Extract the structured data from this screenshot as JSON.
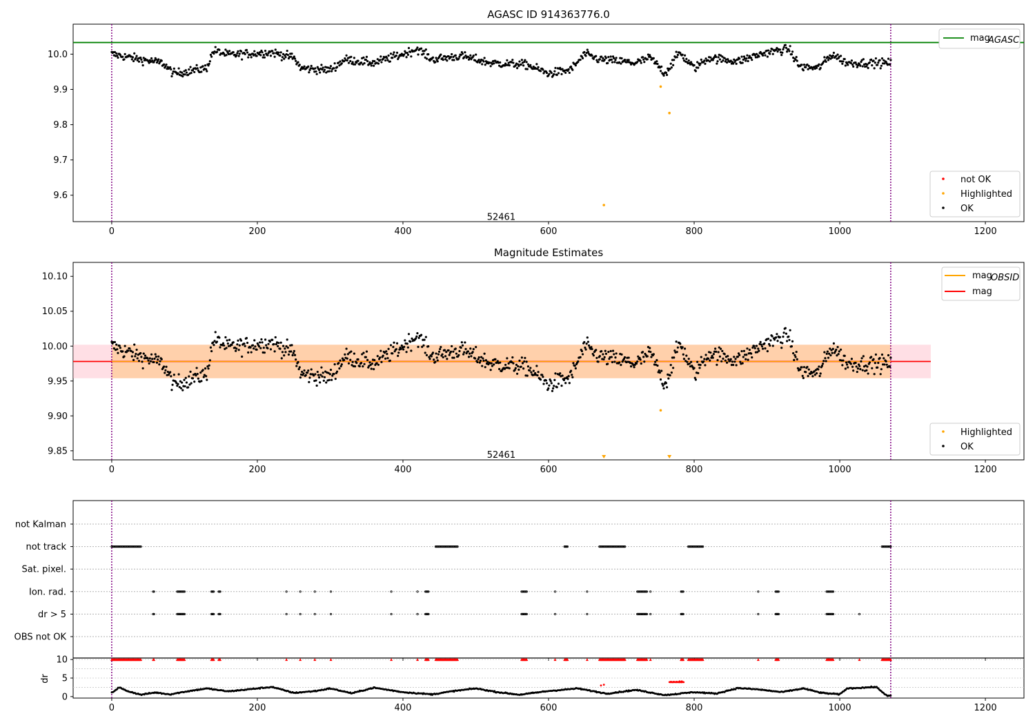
{
  "colors": {
    "ok": "#000000",
    "not_ok": "#ff0000",
    "highlighted": "#ffa500",
    "agasc_line": "#008000",
    "mag_line": "#ff0000",
    "obsid_line": "#ffa500",
    "obs_boundary": "#800080"
  },
  "chart_data": [
    {
      "id": "agasc",
      "type": "scatter",
      "title": "AGASC ID 914363776.0",
      "xlim": [
        -53,
        1253
      ],
      "ylim": [
        9.525,
        10.085
      ],
      "xticks": [
        0,
        200,
        400,
        600,
        800,
        1000,
        1200
      ],
      "yticks": [
        9.6,
        9.7,
        9.8,
        9.9,
        10.0
      ],
      "ytick_labels": [
        "9.6",
        "9.7",
        "9.8",
        "9.9",
        "10.0"
      ],
      "obsid_boundaries": [
        0,
        1070
      ],
      "obsid_label": {
        "text": "52461",
        "x": 535,
        "y": 9.54
      },
      "mag_agasc": 10.033,
      "legend_line": {
        "label": "mag",
        "sub": "AGASC",
        "placement": "upper right"
      },
      "legend_markers": {
        "placement": "lower right",
        "items": [
          "not OK",
          "Highlighted",
          "OK"
        ]
      },
      "highlighted_points": [
        [
          754,
          9.908
        ],
        [
          766,
          9.833
        ],
        [
          676,
          9.572
        ]
      ],
      "series": [
        {
          "name": "OK",
          "x_range": [
            0,
            1070
          ],
          "n": 1000,
          "note_shape": "mean-level per segment",
          "segments": [
            [
              0,
              10.0
            ],
            [
              40,
              9.985
            ],
            [
              70,
              9.975
            ],
            [
              85,
              9.945
            ],
            [
              130,
              9.96
            ],
            [
              140,
              10.01
            ],
            [
              160,
              9.998
            ],
            [
              220,
              10.005
            ],
            [
              250,
              9.99
            ],
            [
              260,
              9.96
            ],
            [
              300,
              9.955
            ],
            [
              320,
              9.985
            ],
            [
              360,
              9.975
            ],
            [
              400,
              10.0
            ],
            [
              420,
              10.015
            ],
            [
              440,
              9.985
            ],
            [
              480,
              9.995
            ],
            [
              520,
              9.975
            ],
            [
              570,
              9.97
            ],
            [
              600,
              9.945
            ],
            [
              630,
              9.955
            ],
            [
              650,
              10.0
            ],
            [
              670,
              9.985
            ],
            [
              720,
              9.975
            ],
            [
              740,
              9.99
            ],
            [
              760,
              9.945
            ],
            [
              780,
              10.005
            ],
            [
              800,
              9.96
            ],
            [
              820,
              9.99
            ],
            [
              860,
              9.98
            ],
            [
              900,
              10.005
            ],
            [
              930,
              10.015
            ],
            [
              945,
              9.965
            ],
            [
              970,
              9.96
            ],
            [
              990,
              10.0
            ],
            [
              1010,
              9.975
            ],
            [
              1070,
              9.975
            ]
          ]
        }
      ]
    },
    {
      "id": "estimates",
      "type": "scatter",
      "title": "Magnitude Estimates",
      "xlim": [
        -53,
        1253
      ],
      "ylim": [
        9.837,
        10.12
      ],
      "xticks": [
        0,
        200,
        400,
        600,
        800,
        1000,
        1200
      ],
      "yticks": [
        9.85,
        9.9,
        9.95,
        10.0,
        10.05,
        10.1
      ],
      "ytick_labels": [
        "9.85",
        "9.90",
        "9.95",
        "10.00",
        "10.05",
        "10.10"
      ],
      "obsid_boundaries": [
        0,
        1070
      ],
      "obsid_label": {
        "text": "52461",
        "x": 535,
        "y": 9.845
      },
      "mag": 9.978,
      "mag_obsid": 9.978,
      "mag_band": [
        9.954,
        10.002
      ],
      "obsid_band": [
        9.954,
        10.002
      ],
      "band_xrange": [
        -53,
        1125
      ],
      "obsid_xrange": [
        0,
        1070
      ],
      "legend_line": {
        "placement": "upper right",
        "items": [
          {
            "label": "mag",
            "sub": "OBSID"
          },
          {
            "label": "mag",
            "sub": ""
          }
        ]
      },
      "legend_markers": {
        "placement": "lower right",
        "items": [
          "Highlighted",
          "OK"
        ]
      },
      "highlighted_points": [
        [
          754,
          9.908
        ]
      ],
      "offscale_points": [
        676,
        766
      ]
    },
    {
      "id": "flags",
      "type": "scatter",
      "xlim": [
        -53,
        1253
      ],
      "xticks": [
        0,
        200,
        400,
        600,
        800,
        1000,
        1200
      ],
      "categories": [
        "not Kalman",
        "not track",
        "Sat. pixel.",
        "Ion. rad.",
        "dr > 5",
        "OBS not OK"
      ],
      "obsid_boundaries": [
        0,
        1070
      ],
      "flag_runs": {
        "not track": [
          [
            0,
            40
          ],
          [
            445,
            475
          ],
          [
            622,
            626
          ],
          [
            670,
            705
          ],
          [
            792,
            812
          ],
          [
            1058,
            1070
          ]
        ],
        "Ion. rad.": [
          [
            57,
            58
          ],
          [
            90,
            100
          ],
          [
            137,
            140
          ],
          [
            147,
            149
          ],
          [
            240,
            240
          ],
          [
            259,
            259
          ],
          [
            279,
            279
          ],
          [
            301,
            301
          ],
          [
            384,
            384
          ],
          [
            420,
            420
          ],
          [
            431,
            435
          ],
          [
            563,
            570
          ],
          [
            609,
            609
          ],
          [
            653,
            653
          ],
          [
            722,
            735
          ],
          [
            740,
            740
          ],
          [
            782,
            785
          ],
          [
            888,
            888
          ],
          [
            912,
            916
          ],
          [
            982,
            991
          ]
        ],
        "dr > 5": [
          [
            57,
            58
          ],
          [
            90,
            100
          ],
          [
            137,
            140
          ],
          [
            147,
            149
          ],
          [
            240,
            240
          ],
          [
            259,
            259
          ],
          [
            279,
            279
          ],
          [
            301,
            301
          ],
          [
            384,
            384
          ],
          [
            420,
            420
          ],
          [
            431,
            435
          ],
          [
            563,
            570
          ],
          [
            609,
            609
          ],
          [
            653,
            653
          ],
          [
            722,
            735
          ],
          [
            740,
            740
          ],
          [
            782,
            785
          ],
          [
            888,
            888
          ],
          [
            912,
            916
          ],
          [
            982,
            991
          ],
          [
            1027,
            1027
          ]
        ]
      }
    },
    {
      "id": "dr",
      "type": "scatter",
      "ylabel": "dr",
      "xlim": [
        -53,
        1253
      ],
      "ylim": [
        -0.4,
        10.4
      ],
      "xticks": [
        0,
        200,
        400,
        600,
        800,
        1000,
        1200
      ],
      "yticks": [
        0,
        5,
        10
      ],
      "ytick_labels": [
        "0",
        "5",
        "10"
      ],
      "obsid_boundaries": [
        0,
        1070
      ],
      "dr_clipped_runs": [
        [
          0,
          40
        ],
        [
          57,
          58
        ],
        [
          90,
          100
        ],
        [
          137,
          140
        ],
        [
          147,
          149
        ],
        [
          240,
          240
        ],
        [
          259,
          259
        ],
        [
          279,
          279
        ],
        [
          301,
          301
        ],
        [
          384,
          384
        ],
        [
          420,
          420
        ],
        [
          431,
          435
        ],
        [
          445,
          475
        ],
        [
          563,
          570
        ],
        [
          609,
          609
        ],
        [
          622,
          626
        ],
        [
          653,
          653
        ],
        [
          670,
          705
        ],
        [
          722,
          735
        ],
        [
          740,
          740
        ],
        [
          782,
          785
        ],
        [
          792,
          812
        ],
        [
          888,
          888
        ],
        [
          912,
          916
        ],
        [
          982,
          991
        ],
        [
          1027,
          1027
        ],
        [
          1058,
          1070
        ]
      ],
      "dr_red_points": [
        [
          768,
          4
        ],
        [
          772,
          4
        ],
        [
          776,
          4
        ],
        [
          780,
          4.1
        ],
        [
          783,
          4.1
        ],
        [
          672,
          3.0
        ],
        [
          676,
          3.2
        ]
      ],
      "dr_shape": [
        [
          0,
          1.0
        ],
        [
          10,
          2.5
        ],
        [
          20,
          1.6
        ],
        [
          40,
          0.5
        ],
        [
          60,
          1.1
        ],
        [
          80,
          0.6
        ],
        [
          100,
          1.3
        ],
        [
          130,
          2.2
        ],
        [
          160,
          1.4
        ],
        [
          190,
          2.0
        ],
        [
          220,
          2.6
        ],
        [
          250,
          1.0
        ],
        [
          280,
          1.5
        ],
        [
          300,
          2.2
        ],
        [
          330,
          0.9
        ],
        [
          360,
          2.4
        ],
        [
          400,
          1.2
        ],
        [
          440,
          0.6
        ],
        [
          470,
          1.5
        ],
        [
          500,
          2.2
        ],
        [
          530,
          1.2
        ],
        [
          560,
          0.5
        ],
        [
          600,
          1.5
        ],
        [
          640,
          2.2
        ],
        [
          680,
          0.8
        ],
        [
          720,
          1.8
        ],
        [
          760,
          0.4
        ],
        [
          800,
          1.2
        ],
        [
          830,
          0.8
        ],
        [
          860,
          2.3
        ],
        [
          890,
          1.9
        ],
        [
          920,
          1.2
        ],
        [
          950,
          2.2
        ],
        [
          975,
          1.0
        ],
        [
          1000,
          0.6
        ],
        [
          1010,
          2.2
        ],
        [
          1050,
          2.6
        ],
        [
          1065,
          0.2
        ],
        [
          1070,
          0.2
        ]
      ]
    }
  ]
}
